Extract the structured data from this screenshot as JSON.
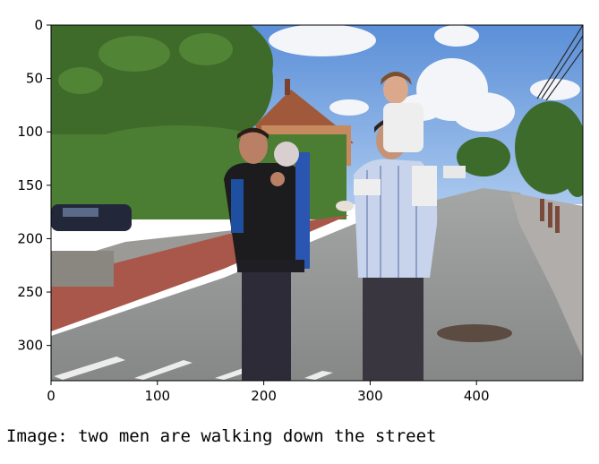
{
  "figure": {
    "image_description": "photo",
    "caption_label": "Image:",
    "caption_text": "two men are walking down the street"
  },
  "axes": {
    "x_ticks": [
      "0",
      "100",
      "200",
      "300",
      "400"
    ],
    "y_ticks": [
      "0",
      "50",
      "100",
      "150",
      "200",
      "250",
      "300"
    ],
    "x_range": [
      0,
      500
    ],
    "y_range": [
      0,
      333
    ]
  },
  "colors": {
    "sky": "#6f9fe0",
    "cloud": "#f2f4f8",
    "tree": "#3f6b2a",
    "road": "#9a9c9a",
    "brick_path": "#a9574a",
    "roof": "#a05a3b",
    "house": "#c88a60"
  }
}
